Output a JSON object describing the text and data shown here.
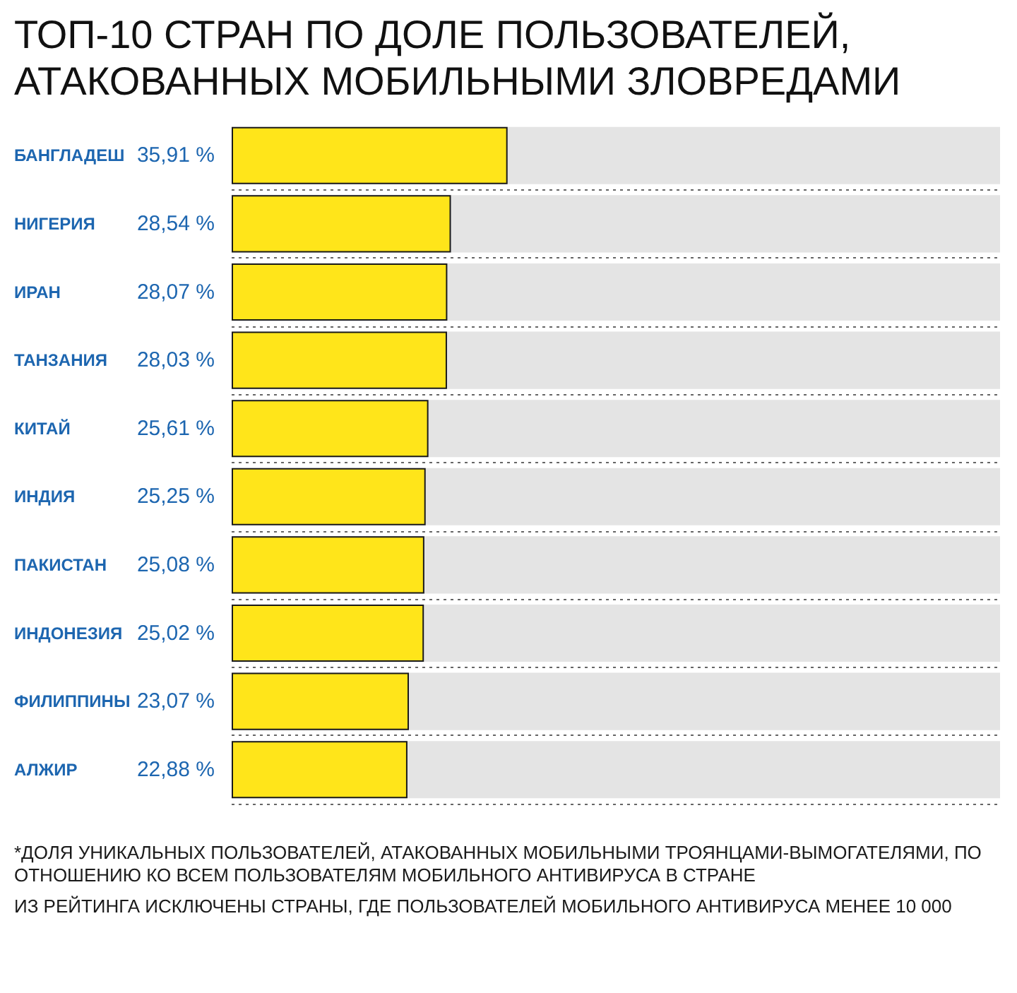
{
  "chart_data": {
    "type": "bar",
    "orientation": "horizontal",
    "title": "ТОП-10 СТРАН ПО ДОЛЕ ПОЛЬЗОВАТЕЛЕЙ, АТАКОВАННЫХ МОБИЛЬНЫМИ ЗЛОВРЕДАМИ",
    "categories": [
      "БАНГЛАДЕШ",
      "НИГЕРИЯ",
      "ИРАН",
      "ТАНЗАНИЯ",
      "КИТАЙ",
      "ИНДИЯ",
      "ПАКИСТАН",
      "ИНДОНЕЗИЯ",
      "ФИЛИППИНЫ",
      "АЛЖИР"
    ],
    "values": [
      35.91,
      28.54,
      28.07,
      28.03,
      25.61,
      25.25,
      25.08,
      25.02,
      23.07,
      22.88
    ],
    "value_labels": [
      "35,91 %",
      "28,54 %",
      "28,07 %",
      "28,03 %",
      "25,61 %",
      "25,25 %",
      "25,08 %",
      "25,02 %",
      "23,07 %",
      "22,88 %"
    ],
    "color": "#ffe51a",
    "xlim": [
      0,
      100
    ],
    "tick_labels": "y",
    "grid": "y",
    "annotations": [
      "*ДОЛЯ УНИКАЛЬНЫХ ПОЛЬЗОВАТЕЛЕЙ, АТАКОВАННЫХ МОБИЛЬНЫМИ ТРОЯНЦАМИ-ВЫМОГАТЕЛЯМИ, ПО ОТНОШЕНИЮ КО ВСЕМ ПОЛЬЗОВАТЕЛЯМ МОБИЛЬНОГО АНТИВИРУСА В СТРАНЕ",
      "ИЗ РЕЙТИНГА ИСКЛЮЧЕНЫ СТРАНЫ, ГДЕ ПОЛЬЗОВАТЕЛЕЙ МОБИЛЬНОГО АНТИВИРУСА МЕНЕЕ 10 000"
    ]
  }
}
